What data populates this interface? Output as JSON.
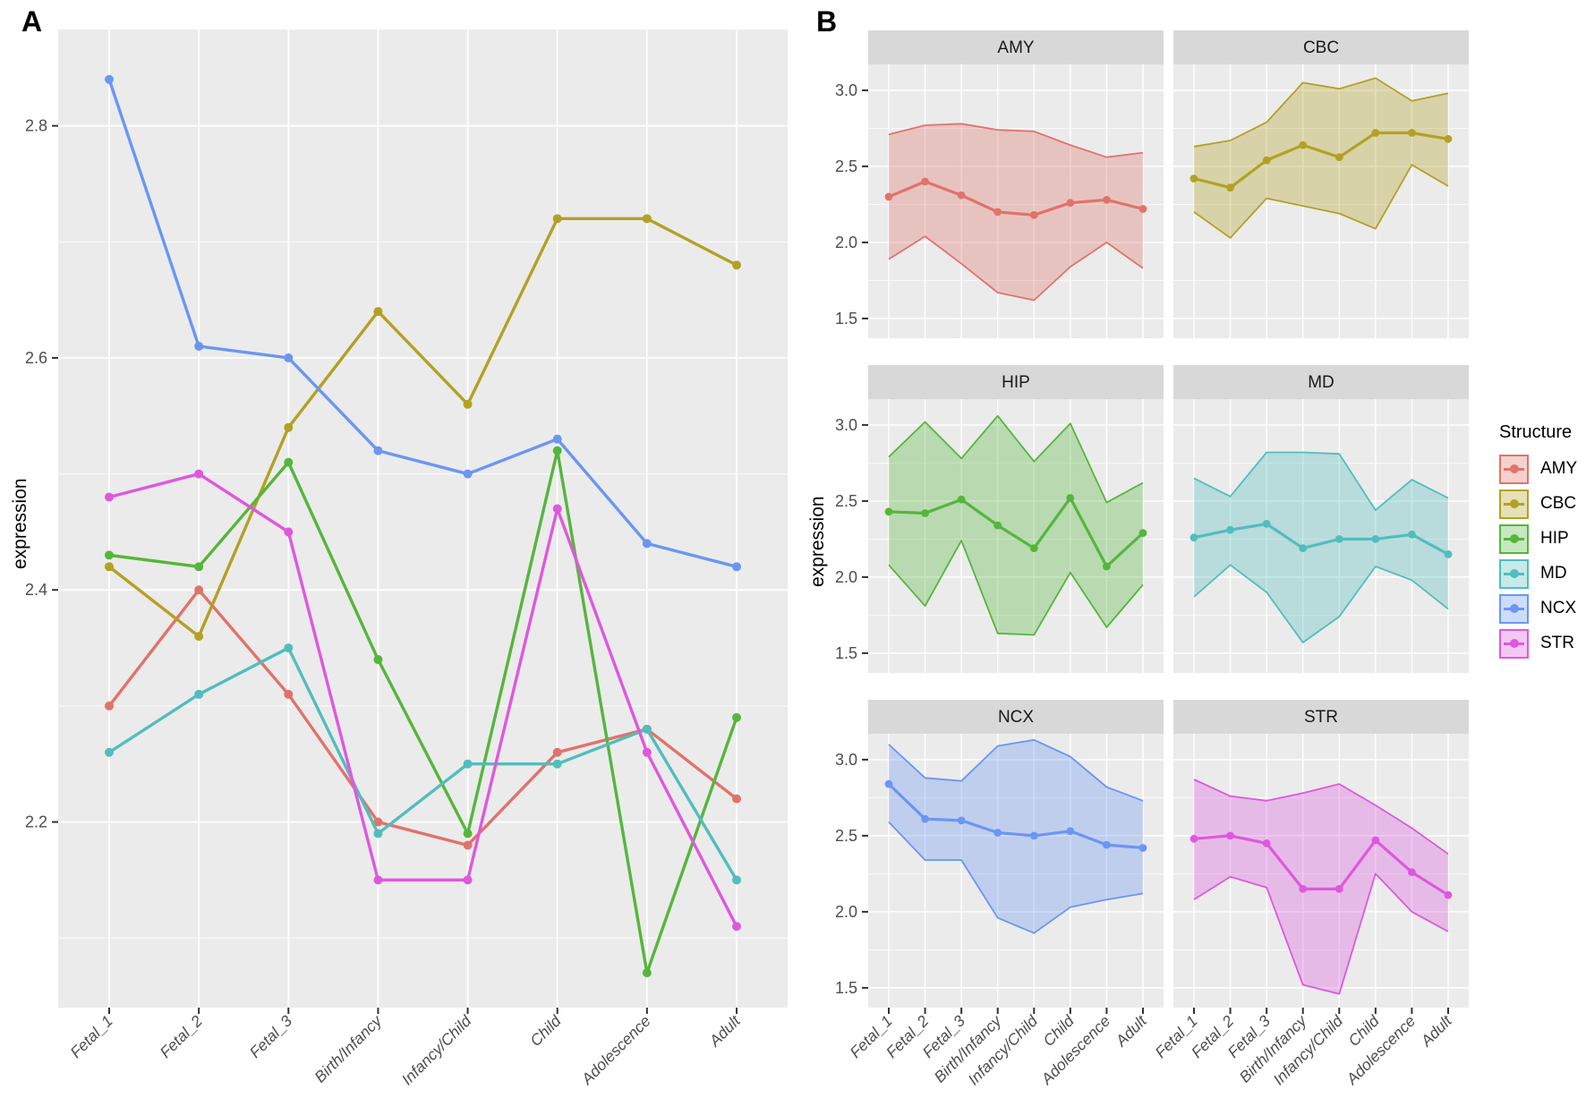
{
  "figure": {
    "panel_a_label": "A",
    "panel_b_label": "B"
  },
  "axes": {
    "y_label": "expression",
    "categories": [
      "Fetal_1",
      "Fetal_2",
      "Fetal_3",
      "Birth/Infancy",
      "Infancy/Child",
      "Child",
      "Adolescence",
      "Adult"
    ],
    "panel_a": {
      "ytick_labels": [
        "2.2",
        "2.4",
        "2.6",
        "2.8"
      ],
      "yticks": [
        2.2,
        2.4,
        2.6,
        2.8
      ],
      "yminor": [
        2.1,
        2.3,
        2.5,
        2.7
      ],
      "ylim": [
        2.04,
        2.883
      ]
    },
    "panel_b": {
      "ytick_labels": [
        "1.5",
        "2.0",
        "2.5",
        "3.0"
      ],
      "yticks": [
        1.5,
        2.0,
        2.5,
        3.0
      ],
      "yminor": [
        1.75,
        2.25,
        2.75
      ],
      "ylim": [
        1.37,
        3.17
      ]
    }
  },
  "legend": {
    "title": "Structure",
    "items": [
      "AMY",
      "CBC",
      "HIP",
      "MD",
      "NCX",
      "STR"
    ]
  },
  "colors": {
    "AMY": "#E0736B",
    "CBC": "#B3A125",
    "HIP": "#55B63C",
    "MD": "#52BDBD",
    "NCX": "#6B96F2",
    "STR": "#DE58DE",
    "panel_bg": "#EBEBEB",
    "strip_bg": "#D8D8D8",
    "gridline": "#FFFFFF",
    "axis_text": "#4D4D4D",
    "tick_mark": "#333333"
  },
  "chart_data": [
    {
      "type": "line",
      "title": "A",
      "xlabel": "",
      "ylabel": "expression",
      "categories": [
        "Fetal_1",
        "Fetal_2",
        "Fetal_3",
        "Birth/Infancy",
        "Infancy/Child",
        "Child",
        "Adolescence",
        "Adult"
      ],
      "ylim": [
        2.04,
        2.88
      ],
      "yticks": [
        2.2,
        2.4,
        2.6,
        2.8
      ],
      "grid": true,
      "series": [
        {
          "name": "AMY",
          "color": "#E0736B",
          "values": [
            2.3,
            2.4,
            2.31,
            2.2,
            2.18,
            2.26,
            2.28,
            2.22
          ]
        },
        {
          "name": "CBC",
          "color": "#B3A125",
          "values": [
            2.42,
            2.36,
            2.54,
            2.64,
            2.56,
            2.72,
            2.72,
            2.68
          ]
        },
        {
          "name": "HIP",
          "color": "#55B63C",
          "values": [
            2.43,
            2.42,
            2.51,
            2.34,
            2.19,
            2.52,
            2.07,
            2.29
          ]
        },
        {
          "name": "MD",
          "color": "#52BDBD",
          "values": [
            2.26,
            2.31,
            2.35,
            2.19,
            2.25,
            2.25,
            2.28,
            2.15
          ]
        },
        {
          "name": "NCX",
          "color": "#6B96F2",
          "values": [
            2.84,
            2.61,
            2.6,
            2.52,
            2.5,
            2.53,
            2.44,
            2.42
          ]
        },
        {
          "name": "STR",
          "color": "#DE58DE",
          "values": [
            2.48,
            2.5,
            2.45,
            2.15,
            2.15,
            2.47,
            2.26,
            2.11
          ]
        }
      ]
    },
    {
      "type": "area",
      "title": "B",
      "xlabel": "",
      "ylabel": "expression",
      "categories": [
        "Fetal_1",
        "Fetal_2",
        "Fetal_3",
        "Birth/Infancy",
        "Infancy/Child",
        "Child",
        "Adolescence",
        "Adult"
      ],
      "ylim": [
        1.37,
        3.17
      ],
      "yticks": [
        1.5,
        2.0,
        2.5,
        3.0
      ],
      "grid": true,
      "legend_position": "right",
      "legend_title": "Structure",
      "facets": [
        {
          "name": "AMY",
          "color": "#E0736B",
          "mean": [
            2.3,
            2.4,
            2.31,
            2.2,
            2.18,
            2.26,
            2.28,
            2.22
          ],
          "lower": [
            1.89,
            2.04,
            1.86,
            1.67,
            1.62,
            1.84,
            2.0,
            1.83
          ],
          "upper": [
            2.71,
            2.77,
            2.78,
            2.74,
            2.73,
            2.64,
            2.56,
            2.59
          ]
        },
        {
          "name": "CBC",
          "color": "#B3A125",
          "mean": [
            2.42,
            2.36,
            2.54,
            2.64,
            2.56,
            2.72,
            2.72,
            2.68
          ],
          "lower": [
            2.2,
            2.03,
            2.29,
            2.24,
            2.19,
            2.09,
            2.51,
            2.37
          ],
          "upper": [
            2.63,
            2.67,
            2.79,
            3.05,
            3.01,
            3.08,
            2.93,
            2.98
          ]
        },
        {
          "name": "HIP",
          "color": "#55B63C",
          "mean": [
            2.43,
            2.42,
            2.51,
            2.34,
            2.19,
            2.52,
            2.07,
            2.29
          ],
          "lower": [
            2.08,
            1.81,
            2.24,
            1.63,
            1.62,
            2.03,
            1.67,
            1.95
          ],
          "upper": [
            2.79,
            3.02,
            2.78,
            3.06,
            2.76,
            3.01,
            2.49,
            2.62
          ]
        },
        {
          "name": "MD",
          "color": "#52BDBD",
          "mean": [
            2.26,
            2.31,
            2.35,
            2.19,
            2.25,
            2.25,
            2.28,
            2.15
          ],
          "lower": [
            1.87,
            2.08,
            1.9,
            1.57,
            1.74,
            2.07,
            1.98,
            1.79
          ],
          "upper": [
            2.65,
            2.53,
            2.82,
            2.82,
            2.81,
            2.44,
            2.64,
            2.52
          ]
        },
        {
          "name": "NCX",
          "color": "#6B96F2",
          "mean": [
            2.84,
            2.61,
            2.6,
            2.52,
            2.5,
            2.53,
            2.44,
            2.42
          ],
          "lower": [
            2.59,
            2.34,
            2.34,
            1.96,
            1.86,
            2.03,
            2.08,
            2.12
          ],
          "upper": [
            3.1,
            2.88,
            2.86,
            3.09,
            3.13,
            3.02,
            2.82,
            2.73
          ]
        },
        {
          "name": "STR",
          "color": "#DE58DE",
          "mean": [
            2.48,
            2.5,
            2.45,
            2.15,
            2.15,
            2.47,
            2.26,
            2.11
          ],
          "lower": [
            2.08,
            2.23,
            2.16,
            1.52,
            1.46,
            2.25,
            2.0,
            1.87
          ],
          "upper": [
            2.87,
            2.76,
            2.73,
            2.78,
            2.84,
            2.7,
            2.55,
            2.38
          ]
        }
      ]
    }
  ]
}
